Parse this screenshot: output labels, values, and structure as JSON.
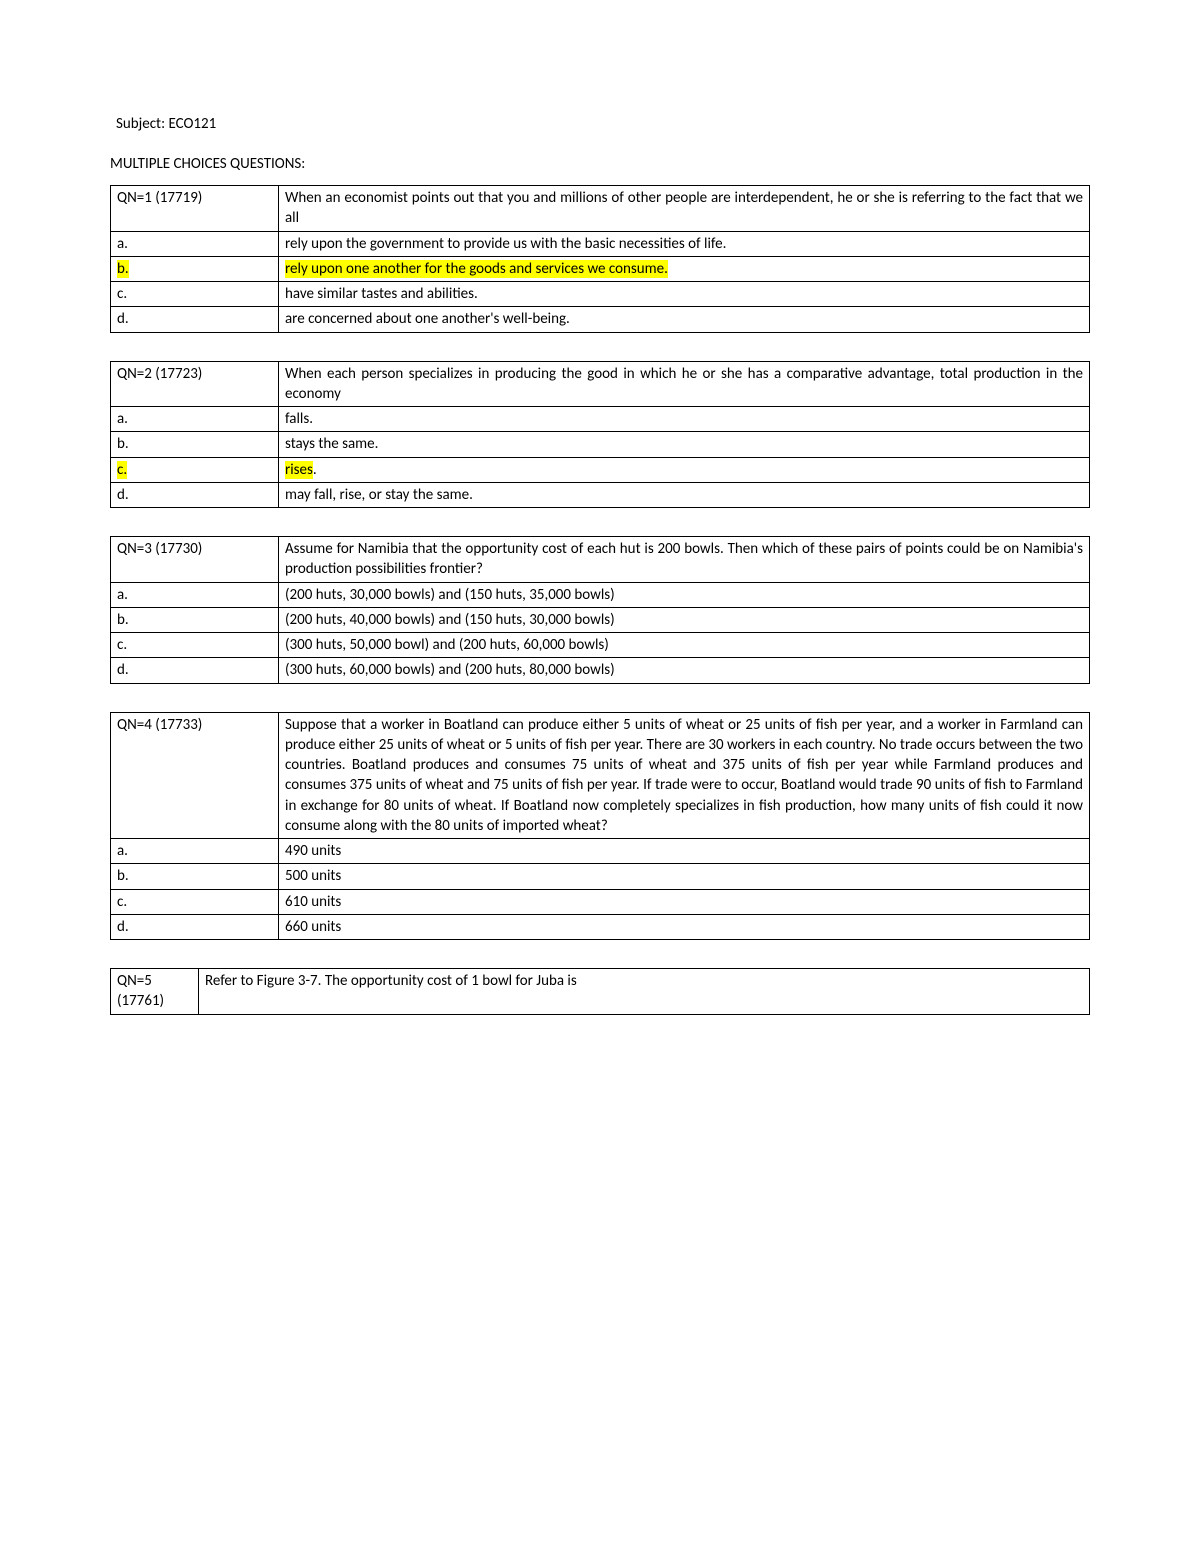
{
  "subject_line": "Subject: ECO121",
  "heading": "MULTIPLE CHOICES QUESTIONS:",
  "questions": [
    {
      "qn": "QN=1 (17719)",
      "prompt": "When an economist points out that you and millions of other people are interdependent, he or she is referring to the fact that we all",
      "prompt_justify": true,
      "narrow": false,
      "options": [
        {
          "label": "a.",
          "text": "rely upon the government to provide us with the basic necessities of life.",
          "highlight": false
        },
        {
          "label": "b.",
          "text": "rely upon one another for the goods and services we consume.",
          "highlight": true
        },
        {
          "label": "c.",
          "text": "have similar tastes and abilities.",
          "highlight": false
        },
        {
          "label": "d.",
          "text": "are concerned about one another's well-being.",
          "highlight": false
        }
      ]
    },
    {
      "qn": "QN=2 (17723)",
      "prompt": "When each person specializes in producing the good in which he or she has a comparative advantage, total production in the economy",
      "prompt_justify": true,
      "narrow": false,
      "options": [
        {
          "label": "a.",
          "text": "falls.",
          "highlight": false
        },
        {
          "label": "b.",
          "text": "stays the same.",
          "highlight": false
        },
        {
          "label": "c.",
          "text": "rises.",
          "highlight": true,
          "split": [
            "rises",
            "."
          ]
        },
        {
          "label": "d.",
          "text": "may fall, rise, or stay the same.",
          "highlight": false
        }
      ]
    },
    {
      "qn": "QN=3 (17730)",
      "prompt": "Assume for Namibia that the opportunity cost of each hut is 200 bowls.  Then which of these pairs of points could be on Namibia's production possibilities frontier?",
      "prompt_justify": true,
      "narrow": false,
      "options": [
        {
          "label": "a.",
          "text": "(200 huts, 30,000 bowls) and (150 huts, 35,000 bowls)",
          "highlight": false
        },
        {
          "label": "b.",
          "text": "(200 huts, 40,000 bowls) and (150 huts, 30,000 bowls)",
          "highlight": false
        },
        {
          "label": "c.",
          "text": "(300 huts, 50,000 bowl) and (200 huts, 60,000 bowls)",
          "highlight": false
        },
        {
          "label": "d.",
          "text": "(300 huts, 60,000 bowls) and (200 huts, 80,000 bowls)",
          "highlight": false
        }
      ]
    },
    {
      "qn": "QN=4 (17733)",
      "prompt": "Suppose that a worker in Boatland can produce either 5 units of wheat or 25 units of fish per year, and a worker in Farmland can produce either 25 units of wheat or 5 units of fish per year.  There are 30 workers in each country.  No trade occurs between the two countries. Boatland produces and consumes 75 units of wheat and 375 units of fish per year while Farmland produces and consumes 375 units of wheat and 75 units of fish per year.  If trade were to occur, Boatland would trade 90 units of fish to Farmland in exchange for 80 units of wheat.  If Boatland now completely specializes in fish production, how many units of fish could it now consume along with the 80 units of imported wheat?",
      "prompt_justify": true,
      "narrow": false,
      "options": [
        {
          "label": "a.",
          "text": "490 units",
          "highlight": false
        },
        {
          "label": "b.",
          "text": "500 units",
          "highlight": false
        },
        {
          "label": "c.",
          "text": "610 units",
          "highlight": false
        },
        {
          "label": "d.",
          "text": "660 units",
          "highlight": false
        }
      ]
    },
    {
      "qn": "QN=5 (17761)",
      "prompt": "Refer to Figure 3-7.  The opportunity cost of 1 bowl for Juba is",
      "prompt_justify": false,
      "narrow": true,
      "options": []
    }
  ]
}
